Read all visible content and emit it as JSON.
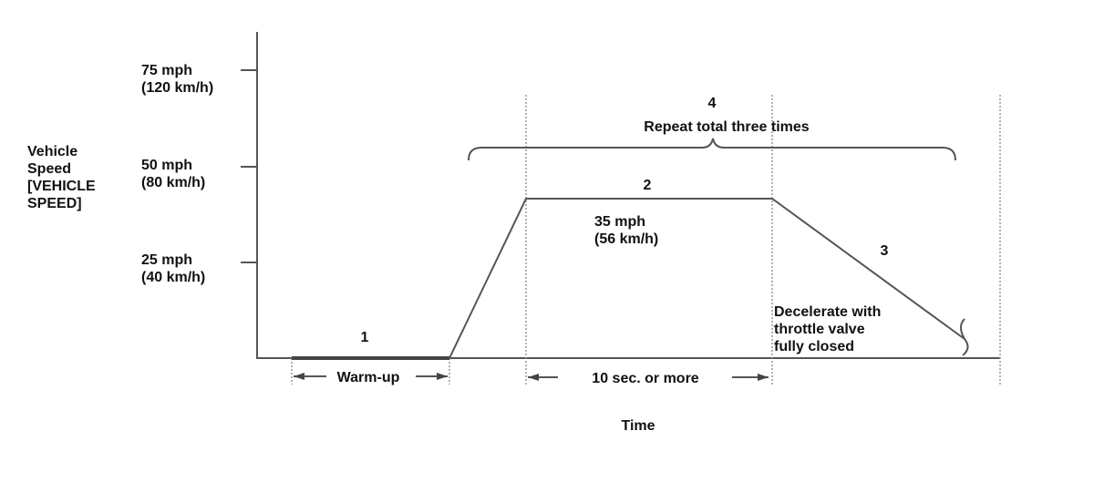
{
  "y_axis": {
    "label_lines": [
      "Vehicle",
      "Speed",
      "[VEHICLE",
      "SPEED]"
    ],
    "ticks": [
      {
        "mph": "75 mph",
        "kmh": "(120 km/h)"
      },
      {
        "mph": "50 mph",
        "kmh": "(80 km/h)"
      },
      {
        "mph": "25 mph",
        "kmh": "(40 km/h)"
      }
    ]
  },
  "x_axis": {
    "label": "Time"
  },
  "steps": {
    "step1": {
      "number": "1",
      "duration": "Warm-up"
    },
    "step2": {
      "number": "2",
      "speed_mph": "35 mph",
      "speed_kmh": "(56 km/h)",
      "duration": "10 sec. or more"
    },
    "step3": {
      "number": "3",
      "note_lines": [
        "Decelerate with",
        "throttle valve",
        "fully closed"
      ]
    },
    "step4": {
      "number": "4",
      "note": "Repeat total three times"
    }
  },
  "colors": {
    "line": "#555555",
    "guide": "#888888",
    "text": "#111111"
  }
}
